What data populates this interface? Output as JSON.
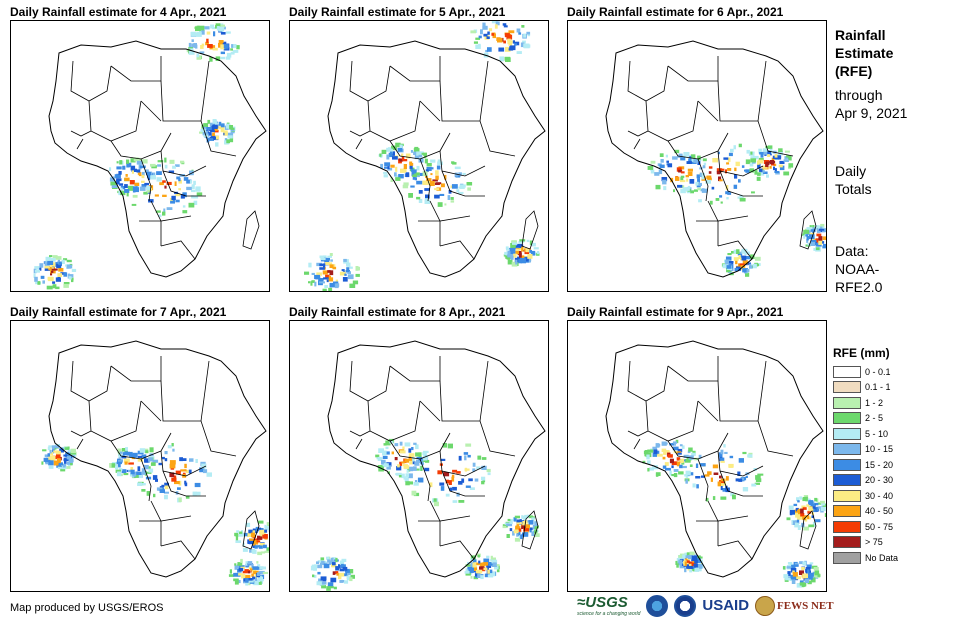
{
  "panels": [
    {
      "title": "Daily Rainfall estimate for 4 Apr., 2021"
    },
    {
      "title": "Daily Rainfall estimate for 5 Apr., 2021"
    },
    {
      "title": "Daily Rainfall estimate for 6 Apr., 2021"
    },
    {
      "title": "Daily Rainfall estimate for 7 Apr., 2021"
    },
    {
      "title": "Daily Rainfall estimate for 8 Apr., 2021"
    },
    {
      "title": "Daily Rainfall estimate for 9 Apr., 2021"
    }
  ],
  "side": {
    "title_lines": [
      "Rainfall",
      "Estimate",
      "(RFE)"
    ],
    "sub_lines": [
      "through",
      "Apr 9, 2021"
    ],
    "daily_lines": [
      "Daily",
      "Totals"
    ],
    "data_lines": [
      "Data:",
      "NOAA-",
      "RFE2.0"
    ]
  },
  "legend": {
    "title": "RFE (mm)",
    "items": [
      {
        "label": "0 - 0.1",
        "color": "#ffffff"
      },
      {
        "label": "0.1 - 1",
        "color": "#f0dcc0"
      },
      {
        "label": "1 - 2",
        "color": "#b9f0b0"
      },
      {
        "label": "2 - 5",
        "color": "#6cd86c"
      },
      {
        "label": "5 - 10",
        "color": "#b4ecf4"
      },
      {
        "label": "10 - 15",
        "color": "#7cb8ec"
      },
      {
        "label": "15 - 20",
        "color": "#3c8ce4"
      },
      {
        "label": "20 - 30",
        "color": "#1c5cd4"
      },
      {
        "label": "30 - 40",
        "color": "#fcec84"
      },
      {
        "label": "40 - 50",
        "color": "#fca414"
      },
      {
        "label": "50 - 75",
        "color": "#f43c04"
      },
      {
        "label": "> 75",
        "color": "#a41c1c"
      },
      {
        "label": "No Data",
        "color": "#a0a0a0"
      }
    ]
  },
  "footer": {
    "credit": "Map produced by USGS/EROS"
  },
  "logos": {
    "usgs": "USGS",
    "usgs_tagline": "science for a changing world",
    "usaid": "USAID",
    "fews": "FEWS NET"
  }
}
